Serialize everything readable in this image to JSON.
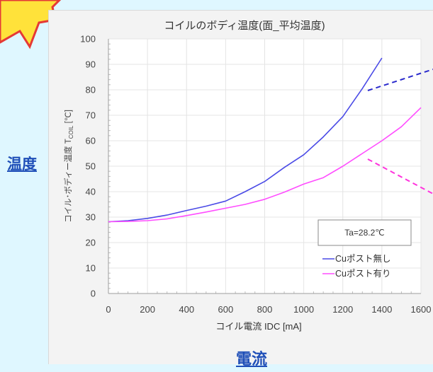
{
  "labels": {
    "y_big": "温度",
    "x_big": "電流"
  },
  "colors": {
    "background": "#dff7ff",
    "panel": "#f3f3f3",
    "series_no_cu": "#4a4ae6",
    "series_cu": "#ff4dff",
    "big_label": "#1f4fb8",
    "starburst_fill": "#ffe23a",
    "starburst_stroke": "#e53935"
  },
  "chart_data": {
    "type": "line",
    "title": "コイルのボディ温度(面_平均温度)",
    "xlabel": "コイル電流 IDC [mA]",
    "ylabel": "コイル･ボディー温度 TCOIL [℃]",
    "ylabel_parts": {
      "prefix": "コイル･ボディー温度 T",
      "subscript": "COIL",
      "suffix": " [℃]"
    },
    "xlim": [
      0,
      1600
    ],
    "ylim": [
      0,
      100
    ],
    "x_ticks": [
      0,
      200,
      400,
      600,
      800,
      1000,
      1200,
      1400,
      1600
    ],
    "y_ticks": [
      0,
      10,
      20,
      30,
      40,
      50,
      60,
      70,
      80,
      90,
      100
    ],
    "grid": true,
    "annotation": "Ta=28.2℃",
    "legend_position": "bottom-right",
    "series": [
      {
        "name": "Cuポスト無し",
        "color": "#4a4ae6",
        "x": [
          0,
          100,
          200,
          300,
          400,
          500,
          600,
          700,
          800,
          900,
          1000,
          1100,
          1200,
          1300,
          1400
        ],
        "y": [
          28.2,
          28.6,
          29.5,
          30.8,
          32.6,
          34.3,
          36.3,
          40.0,
          44.0,
          49.5,
          54.5,
          61.5,
          69.5,
          80.5,
          92.5
        ]
      },
      {
        "name": "Cuポスト有り",
        "color": "#ff4dff",
        "x": [
          0,
          100,
          200,
          300,
          400,
          500,
          600,
          700,
          800,
          900,
          1000,
          1100,
          1200,
          1300,
          1400,
          1500,
          1600
        ],
        "y": [
          28.2,
          28.3,
          28.6,
          29.3,
          30.6,
          32.0,
          33.5,
          35.0,
          37.0,
          39.8,
          43.0,
          45.5,
          50.0,
          55.0,
          60.0,
          65.5,
          73.0
        ]
      }
    ]
  }
}
